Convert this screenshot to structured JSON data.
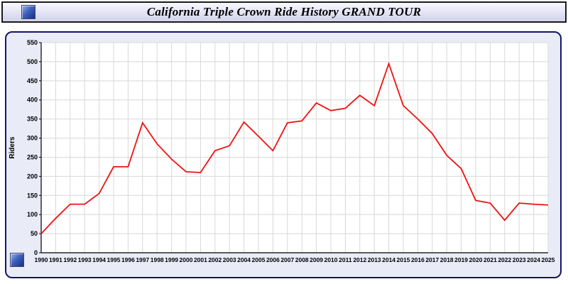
{
  "header": {
    "title": "California Triple Crown Ride History GRAND TOUR",
    "app_icon": "blue-window-icon"
  },
  "footer": {
    "corner_icon": "blue-window-icon"
  },
  "colors": {
    "line": "#ee1111",
    "card_background": "#e9ebf7",
    "card_border": "#15156a",
    "grid": "#d8d8d8"
  },
  "chart_data": {
    "type": "line",
    "title": "California Triple Crown Ride History GRAND TOUR",
    "xlabel": "",
    "ylabel": "Riders",
    "x": [
      1990,
      1991,
      1992,
      1993,
      1994,
      1995,
      1996,
      1997,
      1998,
      1999,
      2000,
      2001,
      2002,
      2003,
      2004,
      2005,
      2006,
      2007,
      2008,
      2009,
      2010,
      2011,
      2012,
      2013,
      2014,
      2015,
      2016,
      2017,
      2018,
      2019,
      2020,
      2021,
      2022,
      2023,
      2024,
      2025
    ],
    "series": [
      {
        "name": "Riders",
        "color": "#ee1111",
        "values": [
          50,
          90,
          127,
          127,
          155,
          225,
          225,
          340,
          285,
          245,
          212,
          210,
          267,
          280,
          342,
          305,
          267,
          340,
          345,
          392,
          372,
          378,
          412,
          385,
          495,
          385,
          350,
          312,
          255,
          220,
          137,
          130,
          85,
          130,
          127,
          125
        ]
      }
    ],
    "ylim": [
      0,
      550
    ],
    "ytick_step": 50,
    "grid": true,
    "legend_position": "none"
  }
}
